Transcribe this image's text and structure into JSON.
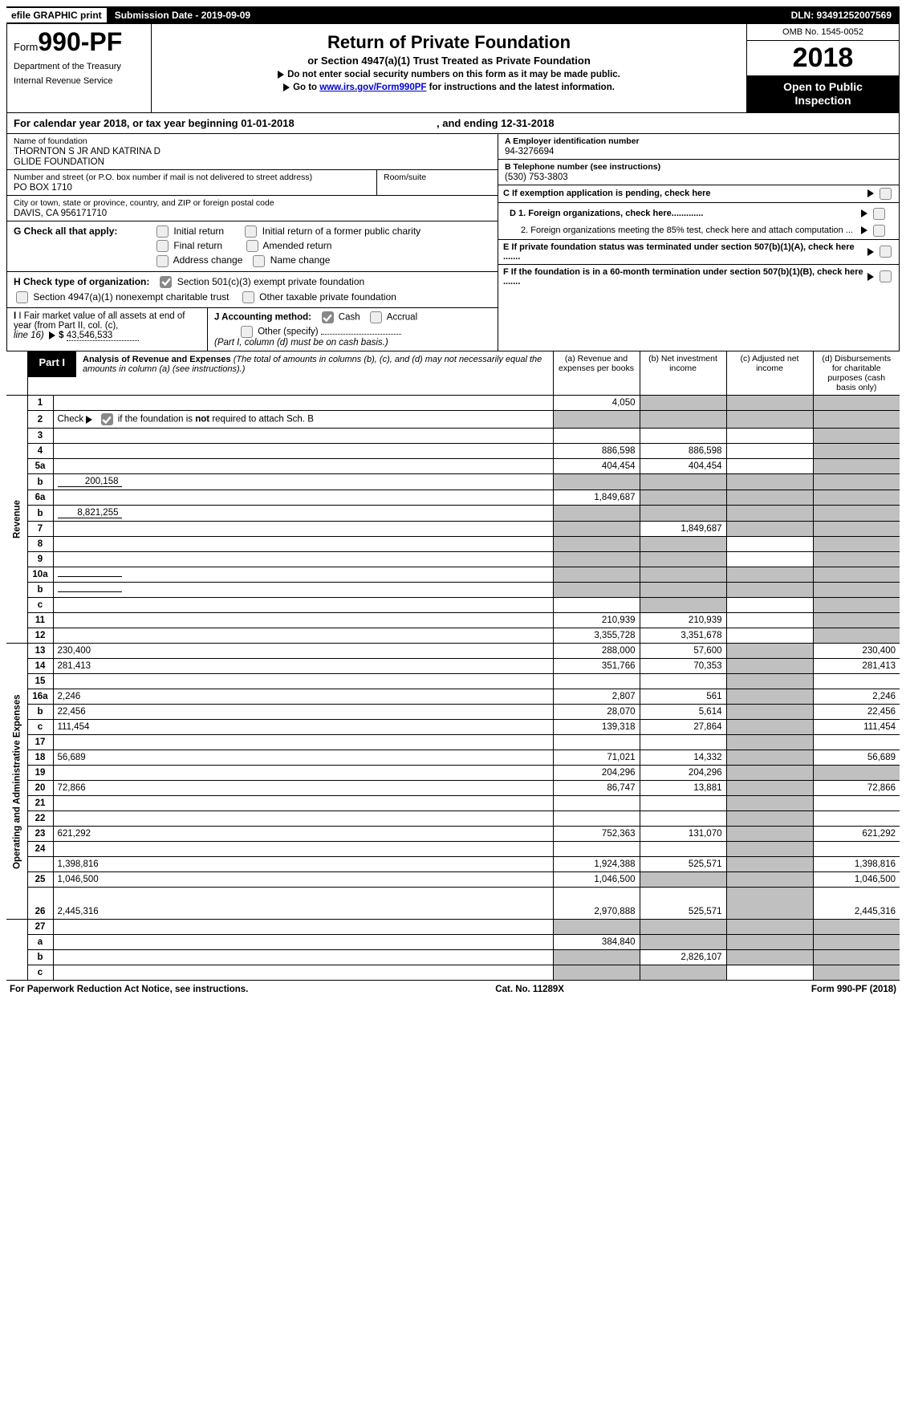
{
  "topbar": {
    "efile": "efile GRAPHIC print",
    "submission": "Submission Date - 2019-09-09",
    "dln": "DLN: 93491252007569"
  },
  "header": {
    "form_word": "Form",
    "form_num": "990-PF",
    "dept1": "Department of the Treasury",
    "dept2": "Internal Revenue Service",
    "title": "Return of Private Foundation",
    "subtitle": "or Section 4947(a)(1) Trust Treated as Private Foundation",
    "warn1": "Do not enter social security numbers on this form as it may be made public.",
    "warn2_pre": "Go to ",
    "warn2_link": "www.irs.gov/Form990PF",
    "warn2_post": " for instructions and the latest information.",
    "omb": "OMB No. 1545-0052",
    "year": "2018",
    "open1": "Open to Public",
    "open2": "Inspection"
  },
  "calyear": {
    "pre": "For calendar year 2018, or tax year beginning 01-01-2018",
    "mid": ", and ending 12-31-2018"
  },
  "id": {
    "name_lbl": "Name of foundation",
    "name1": "THORNTON S JR AND KATRINA D",
    "name2": "GLIDE FOUNDATION",
    "addr_lbl": "Number and street (or P.O. box number if mail is not delivered to street address)",
    "addr": "PO BOX 1710",
    "room_lbl": "Room/suite",
    "city_lbl": "City or town, state or province, country, and ZIP or foreign postal code",
    "city": "DAVIS, CA  956171710",
    "a_lbl": "A Employer identification number",
    "a_val": "94-3276694",
    "b_lbl": "B Telephone number (see instructions)",
    "b_val": "(530) 753-3803",
    "c_lbl": "C  If exemption application is pending, check here",
    "d1": "D 1. Foreign organizations, check here.............",
    "d2": "2. Foreign organizations meeting the 85% test, check here and attach computation ...",
    "e": "E  If private foundation status was terminated under section 507(b)(1)(A), check here .......",
    "f": "F  If the foundation is in a 60-month termination under section 507(b)(1)(B), check here ......."
  },
  "g": {
    "label": "G Check all that apply:",
    "opts": [
      "Initial return",
      "Initial return of a former public charity",
      "Final return",
      "Amended return",
      "Address change",
      "Name change"
    ]
  },
  "h": {
    "label": "H Check type of organization:",
    "o1": "Section 501(c)(3) exempt private foundation",
    "o2": "Section 4947(a)(1) nonexempt charitable trust",
    "o3": "Other taxable private foundation"
  },
  "i": {
    "label": "I Fair market value of all assets at end of year (from Part II, col. (c),",
    "line": "line 16)",
    "val": "43,546,533"
  },
  "j": {
    "label": "J Accounting method:",
    "o1": "Cash",
    "o2": "Accrual",
    "o3": "Other (specify)",
    "note": "(Part I, column (d) must be on cash basis.)"
  },
  "part1": {
    "tag": "Part I",
    "title": "Analysis of Revenue and Expenses",
    "note": "(The total of amounts in columns (b), (c), and (d) may not necessarily equal the amounts in column (a) (see instructions).)",
    "cols": {
      "a": "(a)     Revenue and expenses per books",
      "b": "(b)     Net investment income",
      "c": "(c)     Adjusted net income",
      "d": "(d)     Disbursements for charitable purposes (cash basis only)"
    }
  },
  "sidelabels": {
    "rev": "Revenue",
    "exp": "Operating and Administrative Expenses"
  },
  "rows": [
    {
      "n": "1",
      "d": "",
      "a": "4,050",
      "b": "",
      "c": "",
      "ga": false,
      "gb": true,
      "gc": true,
      "gd": true
    },
    {
      "n": "2",
      "d": "",
      "d2": " if the foundation is <b>not</b> required to attach Sch. B",
      "a": "",
      "b": "",
      "c": "",
      "ga": true,
      "gb": true,
      "gc": true,
      "gd": true,
      "checkbox": true
    },
    {
      "n": "3",
      "d": "",
      "a": "",
      "b": "",
      "c": "",
      "ga": false,
      "gb": false,
      "gc": false,
      "gd": true
    },
    {
      "n": "4",
      "d": "",
      "a": "886,598",
      "b": "886,598",
      "c": "",
      "ga": false,
      "gb": false,
      "gc": false,
      "gd": true
    },
    {
      "n": "5a",
      "d": "",
      "a": "404,454",
      "b": "404,454",
      "c": "",
      "ga": false,
      "gb": false,
      "gc": false,
      "gd": true
    },
    {
      "n": "b",
      "d": "",
      "inline": "200,158",
      "a": "",
      "b": "",
      "c": "",
      "ga": true,
      "gb": true,
      "gc": true,
      "gd": true
    },
    {
      "n": "6a",
      "d": "",
      "a": "1,849,687",
      "b": "",
      "c": "",
      "ga": false,
      "gb": true,
      "gc": true,
      "gd": true
    },
    {
      "n": "b",
      "d": "",
      "inline": "8,821,255",
      "a": "",
      "b": "",
      "c": "",
      "ga": true,
      "gb": true,
      "gc": true,
      "gd": true
    },
    {
      "n": "7",
      "d": "",
      "a": "",
      "b": "1,849,687",
      "c": "",
      "ga": true,
      "gb": false,
      "gc": true,
      "gd": true
    },
    {
      "n": "8",
      "d": "",
      "a": "",
      "b": "",
      "c": "",
      "ga": true,
      "gb": true,
      "gc": false,
      "gd": true
    },
    {
      "n": "9",
      "d": "",
      "a": "",
      "b": "",
      "c": "",
      "ga": true,
      "gb": true,
      "gc": false,
      "gd": true
    },
    {
      "n": "10a",
      "d": "",
      "inline": "",
      "a": "",
      "b": "",
      "c": "",
      "ga": true,
      "gb": true,
      "gc": true,
      "gd": true
    },
    {
      "n": "b",
      "d": "",
      "inline": "",
      "a": "",
      "b": "",
      "c": "",
      "ga": true,
      "gb": true,
      "gc": true,
      "gd": true
    },
    {
      "n": "c",
      "d": "",
      "a": "",
      "b": "",
      "c": "",
      "ga": false,
      "gb": true,
      "gc": false,
      "gd": true
    },
    {
      "n": "11",
      "d": "",
      "a": "210,939",
      "b": "210,939",
      "c": "",
      "ga": false,
      "gb": false,
      "gc": false,
      "gd": true
    },
    {
      "n": "12",
      "d": "",
      "a": "3,355,728",
      "b": "3,351,678",
      "c": "",
      "ga": false,
      "gb": false,
      "gc": false,
      "gd": true
    }
  ],
  "exprows": [
    {
      "n": "13",
      "d": "230,400",
      "a": "288,000",
      "b": "57,600",
      "c": ""
    },
    {
      "n": "14",
      "d": "281,413",
      "a": "351,766",
      "b": "70,353",
      "c": ""
    },
    {
      "n": "15",
      "d": "",
      "a": "",
      "b": "",
      "c": ""
    },
    {
      "n": "16a",
      "d": "2,246",
      "a": "2,807",
      "b": "561",
      "c": ""
    },
    {
      "n": "b",
      "d": "22,456",
      "a": "28,070",
      "b": "5,614",
      "c": ""
    },
    {
      "n": "c",
      "d": "111,454",
      "a": "139,318",
      "b": "27,864",
      "c": ""
    },
    {
      "n": "17",
      "d": "",
      "a": "",
      "b": "",
      "c": ""
    },
    {
      "n": "18",
      "d": "56,689",
      "a": "71,021",
      "b": "14,332",
      "c": ""
    },
    {
      "n": "19",
      "d": "",
      "a": "204,296",
      "b": "204,296",
      "c": "",
      "gd": true
    },
    {
      "n": "20",
      "d": "72,866",
      "a": "86,747",
      "b": "13,881",
      "c": ""
    },
    {
      "n": "21",
      "d": "",
      "a": "",
      "b": "",
      "c": ""
    },
    {
      "n": "22",
      "d": "",
      "a": "",
      "b": "",
      "c": ""
    },
    {
      "n": "23",
      "d": "621,292",
      "a": "752,363",
      "b": "131,070",
      "c": ""
    },
    {
      "n": "24",
      "d": "",
      "a": "",
      "b": "",
      "c": "",
      "merge_next": true
    },
    {
      "n": "",
      "d": "1,398,816",
      "a": "1,924,388",
      "b": "525,571",
      "c": ""
    },
    {
      "n": "25",
      "d": "1,046,500",
      "a": "1,046,500",
      "b": "",
      "c": "",
      "gb": true
    },
    {
      "n": "26",
      "d": "2,445,316",
      "a": "2,970,888",
      "b": "525,571",
      "c": "",
      "tall": true
    }
  ],
  "line27": [
    {
      "n": "27",
      "d": "",
      "a": "",
      "b": "",
      "c": "",
      "ga": true,
      "gb": true,
      "gc": true,
      "gd": true
    },
    {
      "n": "a",
      "d": "",
      "a": "384,840",
      "b": "",
      "c": "",
      "gb": true,
      "gc": true,
      "gd": true
    },
    {
      "n": "b",
      "d": "",
      "a": "",
      "b": "2,826,107",
      "c": "",
      "ga": true,
      "gc": true,
      "gd": true
    },
    {
      "n": "c",
      "d": "",
      "a": "",
      "b": "",
      "c": "",
      "ga": true,
      "gb": true,
      "gd": true
    }
  ],
  "footer": {
    "left": "For Paperwork Reduction Act Notice, see instructions.",
    "mid": "Cat. No. 11289X",
    "right": "Form 990-PF (2018)"
  },
  "colors": {
    "gray": "#c0c0c0"
  }
}
